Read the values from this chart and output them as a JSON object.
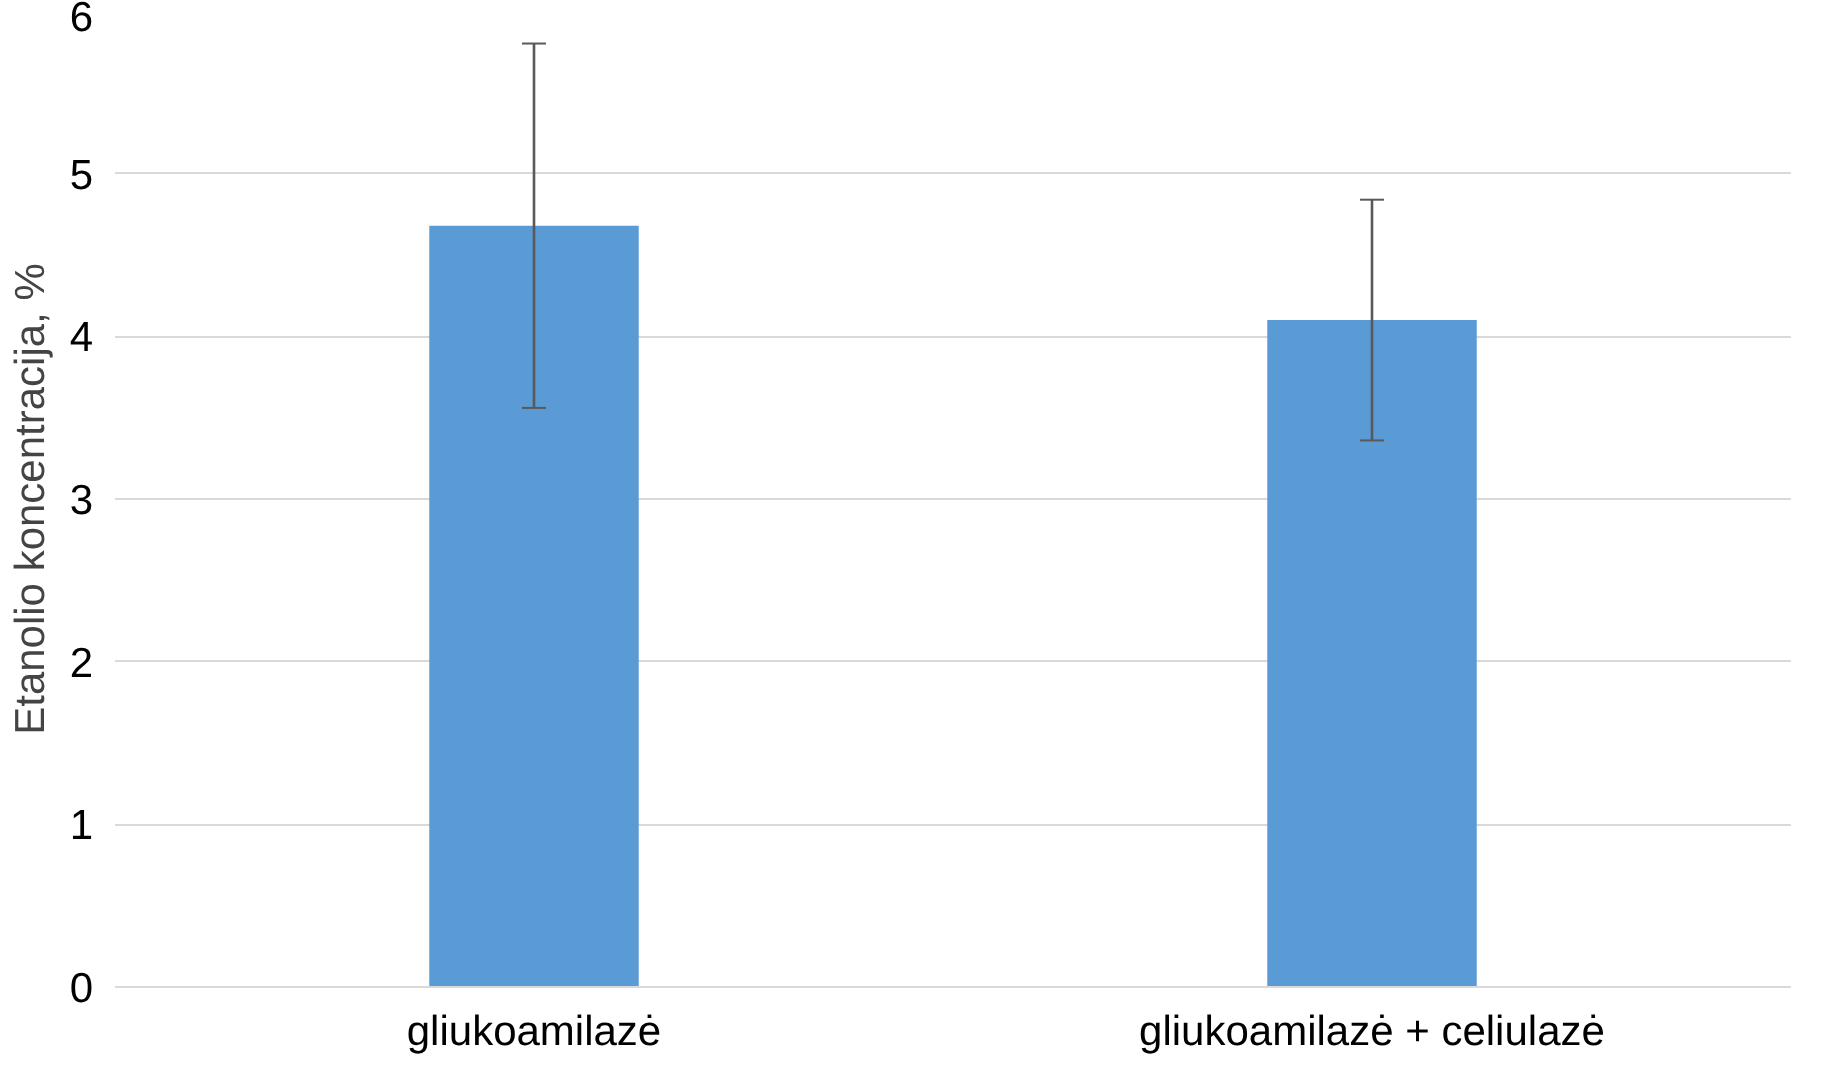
{
  "chart_data": {
    "type": "bar",
    "ylabel": "Etanolio koncentracija, %",
    "categories": [
      "gliukoamilazė",
      "gliukoamilazė + celiulazė"
    ],
    "values": [
      4.68,
      4.1
    ],
    "errors": [
      1.12,
      0.74
    ],
    "color": "#5b9bd5",
    "ylim": [
      0,
      6
    ],
    "yticks": [
      0,
      1,
      2,
      3,
      4,
      5,
      6
    ],
    "grid": "y"
  }
}
